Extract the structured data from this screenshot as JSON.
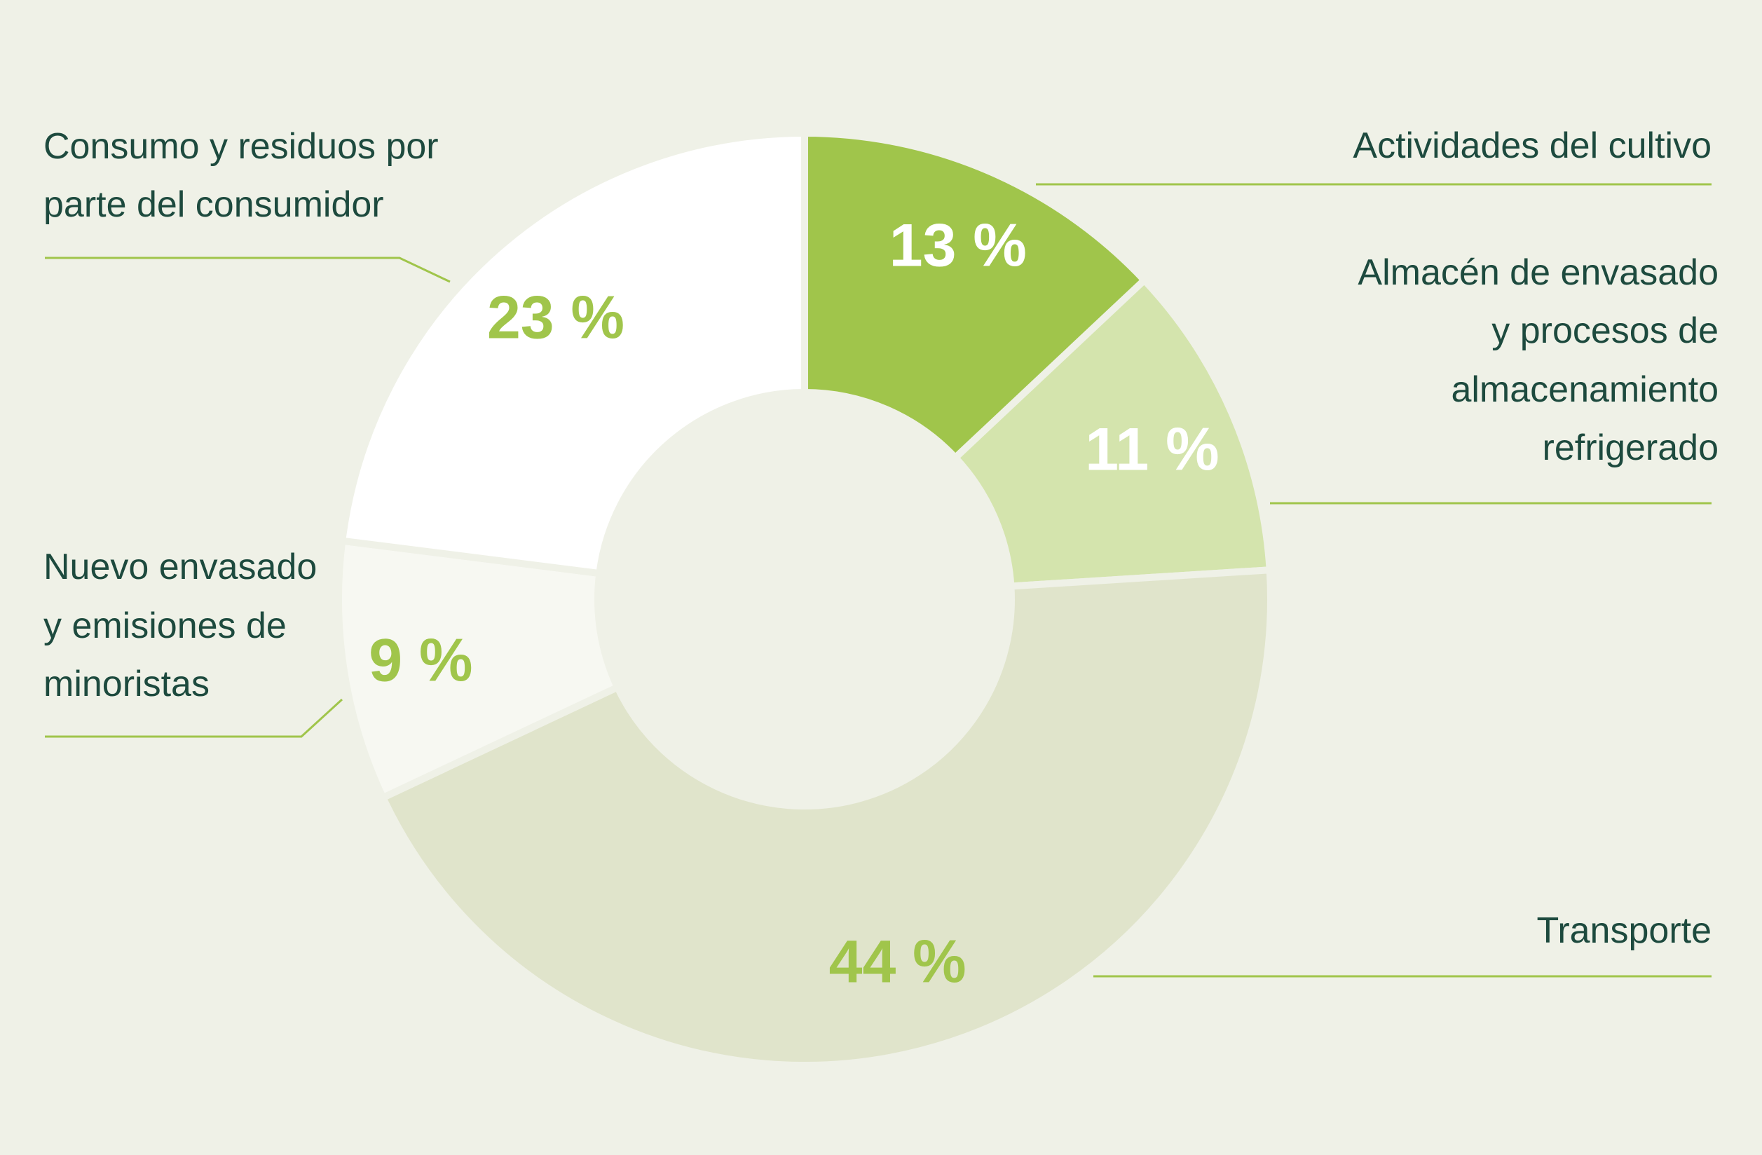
{
  "chart_data": {
    "type": "pie",
    "style": "donut",
    "title": "",
    "slices": [
      {
        "label": "Actividades del cultivo",
        "value": 13,
        "value_label": "13 %",
        "color": "#a0c54b",
        "text_color": "#ffffff"
      },
      {
        "label": "Almacén de envasado y procesos de almacenamiento refrigerado",
        "value": 11,
        "value_label": "11 %",
        "color": "#d4e4ad",
        "text_color": "#ffffff"
      },
      {
        "label": "Transporte",
        "value": 44,
        "value_label": "44 %",
        "color": "#e0e4cb",
        "text_color": "#a0c54b"
      },
      {
        "label": "Nuevo envasado y emisiones de minoristas",
        "value": 9,
        "value_label": "9 %",
        "color": "#f7f8f2",
        "text_color": "#a0c54b"
      },
      {
        "label": "Consumo y residuos por parte del consumidor",
        "value": 23,
        "value_label": "23 %",
        "color": "#ffffff",
        "text_color": "#a0c54b"
      }
    ]
  },
  "labels": {
    "cultivo": [
      "Actividades del cultivo"
    ],
    "almacen": [
      "Almacén de envasado",
      "y procesos de",
      "almacenamiento",
      "refrigerado"
    ],
    "transporte": [
      "Transporte"
    ],
    "nuevo": [
      "Nuevo envasado",
      "y emisiones de",
      "minoristas"
    ],
    "consumo": [
      "Consumo y residuos por",
      "parte del consumidor"
    ]
  },
  "colors": {
    "background": "#eff1e7",
    "leader_line": "#a0c54b",
    "label_text": "#1d4a3e"
  }
}
